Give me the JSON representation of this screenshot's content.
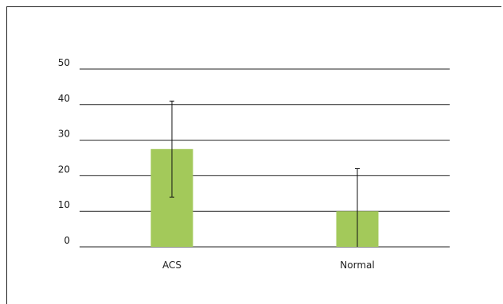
{
  "chart_data": {
    "type": "bar",
    "title": "",
    "xlabel": "",
    "ylabel": "",
    "categories": [
      "ACS",
      "Normal"
    ],
    "values": [
      27.5,
      10
    ],
    "error_low": [
      14,
      0
    ],
    "error_high": [
      41,
      22
    ],
    "ylim": [
      0,
      50
    ],
    "yticks": [
      "0",
      "10",
      "20",
      "30",
      "40",
      "50"
    ],
    "grid": true,
    "bar_color": "#a3c95a",
    "axis_color": "#222222"
  }
}
